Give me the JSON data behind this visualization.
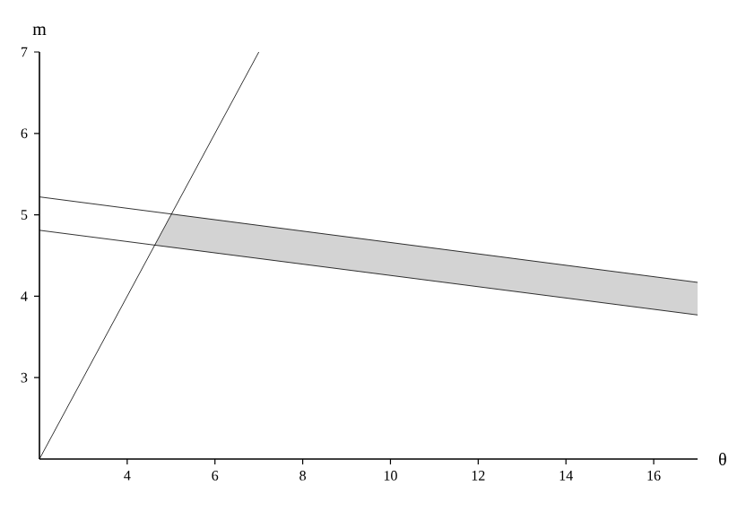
{
  "chart_data": {
    "type": "line",
    "xlabel": "θ",
    "ylabel": "m",
    "xlim": [
      2,
      17
    ],
    "ylim": [
      2,
      7
    ],
    "xticks": [
      4,
      6,
      8,
      10,
      12,
      14,
      16
    ],
    "yticks": [
      3,
      4,
      5,
      6,
      7
    ],
    "marker": "none",
    "line_style": "solid",
    "series": [
      {
        "color": "#000000",
        "x": [
          2,
          7
        ],
        "values": [
          2,
          7
        ]
      },
      {
        "color": "#000000",
        "x": [
          2,
          17
        ],
        "values": [
          5.22,
          4.17
        ]
      },
      {
        "color": "#000000",
        "x": [
          2,
          17
        ],
        "values": [
          4.81,
          3.77
        ]
      },
      {
        "type": "area",
        "color": "#d3d3d3",
        "x": [
          4.63,
          5.01,
          17
        ],
        "values": [
          null,
          null,
          null
        ],
        "upper": [
          4.63,
          5.01,
          4.17
        ],
        "lower": [
          4.63,
          4.6,
          3.77
        ]
      }
    ]
  }
}
